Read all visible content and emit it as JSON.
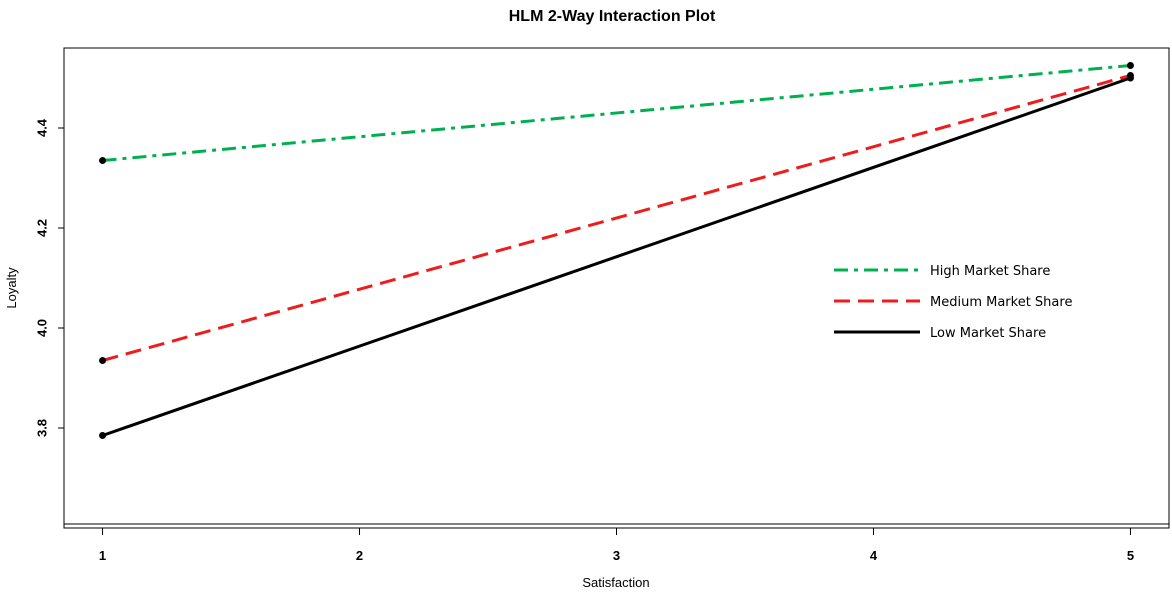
{
  "chart_data": {
    "type": "line",
    "title": "HLM 2-Way Interaction Plot",
    "xlabel": "Satisfaction",
    "ylabel": "Loyalty",
    "x": [
      1,
      5
    ],
    "x_ticks": [
      "1",
      "2",
      "3",
      "4",
      "5"
    ],
    "y_ticks": [
      "3.8",
      "4.0",
      "4.2",
      "4.4"
    ],
    "xlim": [
      0.85,
      5.15
    ],
    "ylim": [
      3.6,
      4.56
    ],
    "grid": false,
    "legend_position": "right",
    "series": [
      {
        "name": "High Market Share",
        "values": [
          4.335,
          4.525
        ],
        "color": "#00b050",
        "dash": "dashdot"
      },
      {
        "name": "Medium Market Share",
        "values": [
          3.935,
          4.505
        ],
        "color": "#ee1c1c",
        "dash": "dashed"
      },
      {
        "name": "Low Market Share",
        "values": [
          3.785,
          4.5
        ],
        "color": "#000000",
        "dash": "solid"
      }
    ]
  }
}
